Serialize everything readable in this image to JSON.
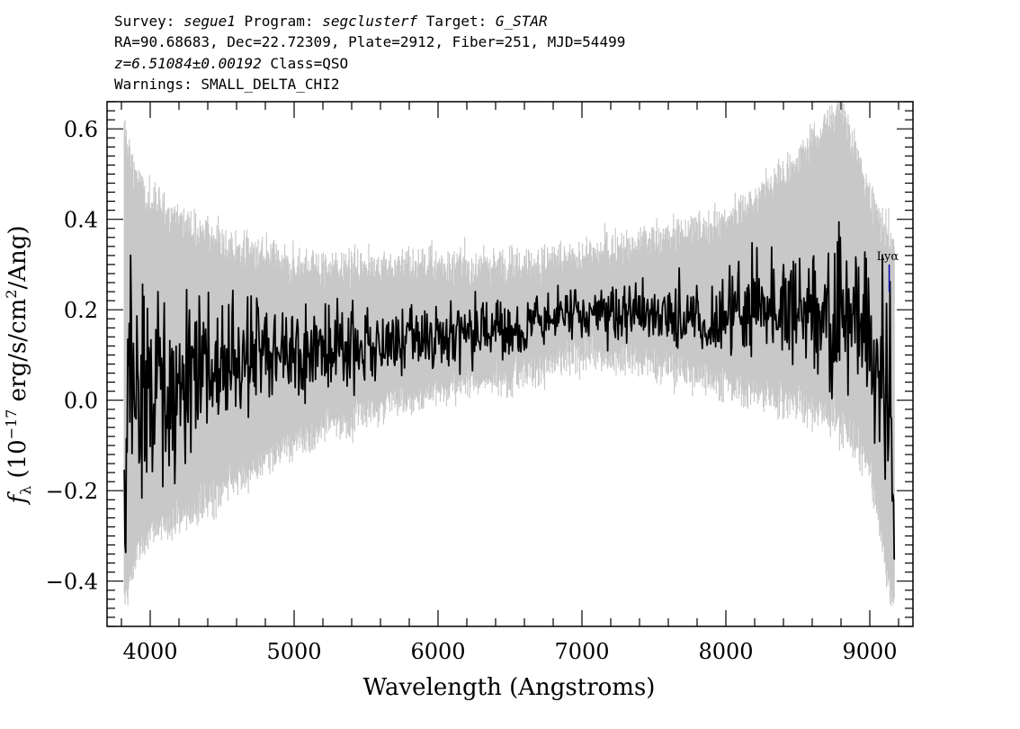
{
  "header": {
    "line1": {
      "survey_label": "Survey: ",
      "survey": "segue1",
      "program_label": " Program: ",
      "program": "segclusterf",
      "target_label": " Target: ",
      "target": "G_STAR"
    },
    "line2": "RA=90.68683, Dec=22.72309, Plate=2912, Fiber=251, MJD=54499",
    "line3": {
      "redshift": "z=6.51084±0.00192",
      "class": " Class=QSO"
    },
    "line4": "Warnings: SMALL_DELTA_CHI2"
  },
  "chart_data": {
    "type": "line",
    "xlabel": "Wavelength (Angstroms)",
    "ylabel": "f_λ (10^-17 erg/s/cm^2/Ang)",
    "xlim": [
      3700,
      9300
    ],
    "ylim": [
      -0.5,
      0.66
    ],
    "xticks": [
      4000,
      5000,
      6000,
      7000,
      8000,
      9000
    ],
    "xtick_labels": [
      "4000",
      "5000",
      "6000",
      "7000",
      "8000",
      "9000"
    ],
    "yticks": [
      -0.4,
      -0.2,
      0.0,
      0.2,
      0.4,
      0.6
    ],
    "ytick_labels": [
      "−0.4",
      "−0.2",
      "0.0",
      "0.2",
      "0.4",
      "0.6"
    ],
    "series": [
      {
        "role": "error-band",
        "color": "#c8c8c8",
        "description": "1-sigma noise envelope drawn in light gray",
        "x": [
          3820,
          3900,
          4000,
          4200,
          4500,
          5000,
          5500,
          6000,
          6500,
          7000,
          7500,
          8000,
          8400,
          8800,
          9000,
          9150
        ],
        "lower": [
          -0.45,
          -0.35,
          -0.3,
          -0.27,
          -0.2,
          -0.1,
          -0.03,
          0.02,
          0.05,
          0.1,
          0.08,
          0.03,
          0.0,
          -0.05,
          -0.15,
          -0.45
        ],
        "upper": [
          0.6,
          0.5,
          0.45,
          0.4,
          0.35,
          0.3,
          0.3,
          0.3,
          0.3,
          0.32,
          0.36,
          0.4,
          0.5,
          0.65,
          0.45,
          0.35
        ]
      },
      {
        "role": "flux",
        "color": "#000000",
        "x": [
          3820,
          3850,
          3900,
          4000,
          4100,
          4200,
          4300,
          4500,
          4700,
          5000,
          5300,
          5600,
          5900,
          6100,
          6400,
          6700,
          7000,
          7300,
          7600,
          7900,
          8200,
          8400,
          8600,
          8800,
          8900,
          9000,
          9050,
          9100,
          9150,
          9170
        ],
        "y": [
          -0.3,
          0.05,
          0.0,
          0.03,
          0.05,
          0.05,
          0.07,
          0.08,
          0.09,
          0.11,
          0.12,
          0.13,
          0.14,
          0.15,
          0.16,
          0.17,
          0.19,
          0.2,
          0.18,
          0.18,
          0.2,
          0.22,
          0.2,
          0.18,
          0.2,
          0.12,
          0.05,
          0.05,
          0.03,
          -0.35
        ]
      }
    ],
    "annotations": [
      {
        "text": "Lyα",
        "x": 9135,
        "y_top": 0.3,
        "y_bottom": 0.24,
        "color": "#0000aa"
      }
    ]
  }
}
